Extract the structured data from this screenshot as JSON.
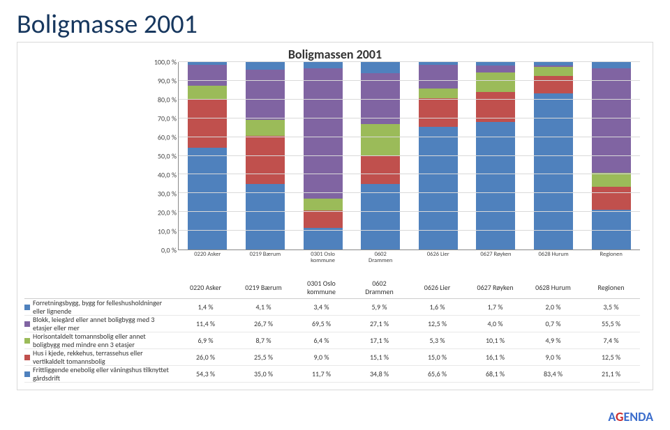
{
  "title": "Boligmasse 2001",
  "chart": {
    "type": "stacked-bar",
    "title": "Boligmassen 2001",
    "ymin": 0,
    "ymax": 100,
    "ystep": 10,
    "ysuffix": " %",
    "grid_color": "#d9d9d9",
    "categories": [
      "0220 Asker",
      "0219 Bærum",
      "0301 Oslo\nkommune",
      "0602\nDrammen",
      "0626 Lier",
      "0627 Røyken",
      "0628 Hurum",
      "Regionen"
    ],
    "series": [
      {
        "label": "Forretningsbygg, bygg for felleshusholdninger eller lignende",
        "color": "#4f81bd",
        "values": [
          "1,4 %",
          "4,1 %",
          "3,4 %",
          "5,9 %",
          "1,6 %",
          "1,7 %",
          "2,0 %",
          "3,5 %"
        ],
        "num": [
          1.4,
          4.1,
          3.4,
          5.9,
          1.6,
          1.7,
          2.0,
          3.5
        ]
      },
      {
        "label": "Blokk, leiegård eller annet boligbygg med 3 etasjer eller mer",
        "color": "#8064a2",
        "values": [
          "11,4 %",
          "26,7 %",
          "69,5 %",
          "27,1 %",
          "12,5 %",
          "4,0 %",
          "0,7 %",
          "55,5 %"
        ],
        "num": [
          11.4,
          26.7,
          69.5,
          27.1,
          12.5,
          4.0,
          0.7,
          55.5
        ]
      },
      {
        "label": "Horisontaldelt tomannsbolig eller annet boligbygg med mindre enn 3 etasjer",
        "color": "#9bbb59",
        "values": [
          "6,9 %",
          "8,7 %",
          "6,4 %",
          "17,1 %",
          "5,3 %",
          "10,1 %",
          "4,9 %",
          "7,4 %"
        ],
        "num": [
          6.9,
          8.7,
          6.4,
          17.1,
          5.3,
          10.1,
          4.9,
          7.4
        ]
      },
      {
        "label": "Hus i kjede, rekkehus, terrassehus eller vertikaldelt tomannsbolig",
        "color": "#c0504d",
        "values": [
          "26,0 %",
          "25,5 %",
          "9,0 %",
          "15,1 %",
          "15,0 %",
          "16,1 %",
          "9,0 %",
          "12,5 %"
        ],
        "num": [
          26.0,
          25.5,
          9.0,
          15.1,
          15.0,
          16.1,
          9.0,
          12.5
        ]
      },
      {
        "label": "Frittliggende enebolig eller våningshus tilknyttet gårdsdrift",
        "color": "#4f81bd",
        "values": [
          "54,3 %",
          "35,0 %",
          "11,7 %",
          "34,8 %",
          "65,6 %",
          "68,1 %",
          "83,4 %",
          "21,1 %"
        ],
        "num": [
          54.3,
          35.0,
          11.7,
          34.8,
          65.6,
          68.1,
          83.4,
          21.1
        ]
      }
    ],
    "background_color": "#ffffff",
    "axis_color": "#888888",
    "label_fontsize": 10
  },
  "logo": {
    "text_a": "A",
    "text_g": "G",
    "text_rest": "ENDA"
  }
}
